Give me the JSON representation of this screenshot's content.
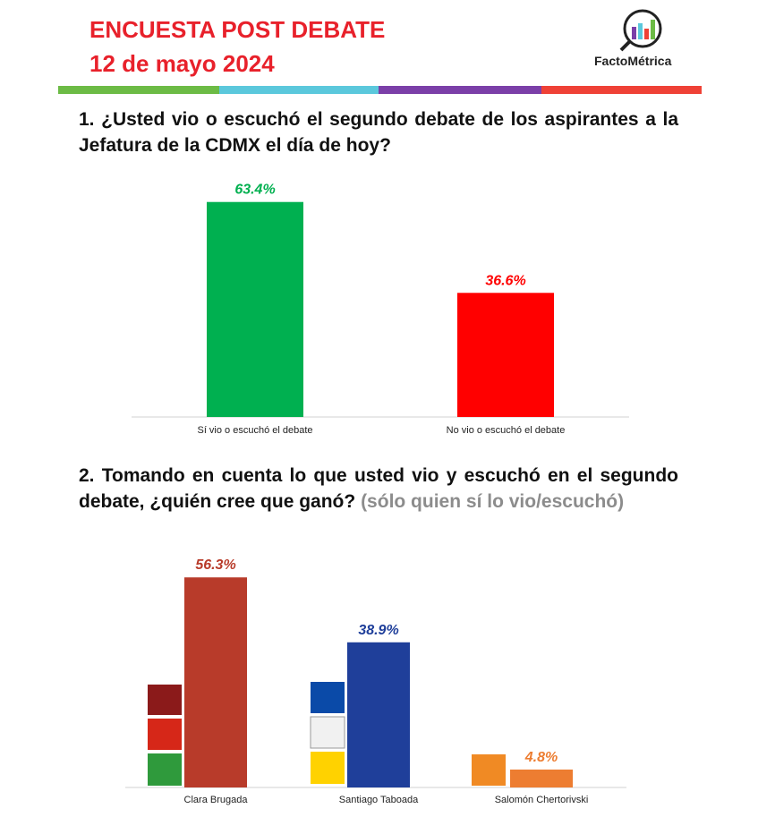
{
  "header": {
    "title": "ENCUESTA POST DEBATE",
    "date": "12 de mayo 2024",
    "brand": "FactoMétrica"
  },
  "chart_data": [
    {
      "type": "bar",
      "title": "1. ¿Usted vio o escuchó el segundo debate de los aspirantes a la Jefatura de la CDMX el día de hoy?",
      "categories": [
        "Sí vio o escuchó el debate",
        "No vio o escuchó el debate"
      ],
      "values": [
        63.4,
        36.6
      ],
      "value_labels": [
        "63.4%",
        "36.6%"
      ],
      "colors": [
        "#00b050",
        "#ff0000"
      ]
    },
    {
      "type": "bar",
      "title": "2. Tomando en cuenta lo que usted vio y escuchó en el segundo debate, ¿quién cree que ganó?",
      "title_note": "(sólo quien sí lo vio/escuchó)",
      "categories": [
        "Clara Brugada",
        "Santiago Taboada",
        "Salomón Chertorivski"
      ],
      "values": [
        56.3,
        38.9,
        4.8
      ],
      "value_labels": [
        "56.3%",
        "38.9%",
        "4.8%"
      ],
      "colors": [
        "#b83b2a",
        "#1f3f9a",
        "#ed7d31"
      ]
    }
  ]
}
